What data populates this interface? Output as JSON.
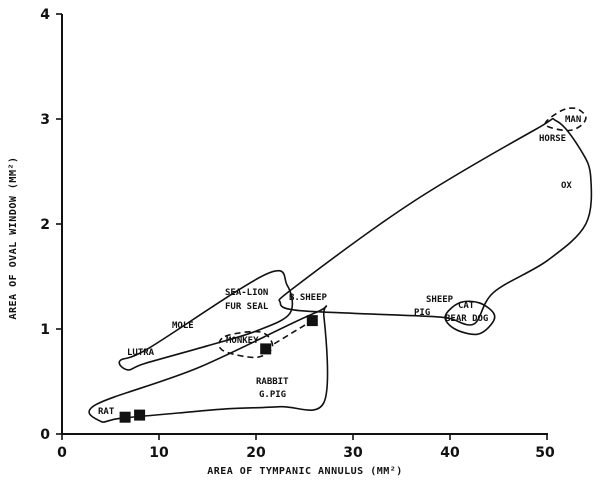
{
  "chart_data": {
    "type": "scatter",
    "title": "",
    "xlabel": "AREA OF TYMPANIC ANNULUS (MM²)",
    "ylabel": "AREA OF OVAL WINDOW (MM²)",
    "xlim": [
      0,
      50
    ],
    "ylim": [
      0,
      4
    ],
    "x_ticks": [
      "0",
      "10",
      "20",
      "30",
      "40",
      "50"
    ],
    "y_ticks": [
      "0",
      "1",
      "2",
      "3",
      "4"
    ],
    "grid": false,
    "legend": "none",
    "labels": [
      {
        "text": "MAN"
      },
      {
        "text": "HORSE"
      },
      {
        "text": "OX"
      },
      {
        "text": "SEA-LION"
      },
      {
        "text": "FUR SEAL"
      },
      {
        "text": "B.SHEEP"
      },
      {
        "text": "MOLE"
      },
      {
        "text": "SHEEP"
      },
      {
        "text": "PIG"
      },
      {
        "text": "CAT"
      },
      {
        "text": "BEAR DOG"
      },
      {
        "text": "MONKEY"
      },
      {
        "text": "LUTRA"
      },
      {
        "text": "RABBIT"
      },
      {
        "text": "G.PIG"
      },
      {
        "text": "RAT"
      }
    ],
    "series": [
      {
        "points": [
          {
            "x": 6.5,
            "y": 0.16
          },
          {
            "x": 8.0,
            "y": 0.18
          },
          {
            "x": 21.0,
            "y": 0.81
          },
          {
            "x": 25.8,
            "y": 1.08
          }
        ]
      }
    ],
    "regions": [
      {
        "style": "solid",
        "path": [
          [
            22.5,
            1.25
          ],
          [
            24,
            1.4
          ],
          [
            36,
            2.2
          ],
          [
            48.8,
            2.9
          ],
          [
            51,
            2.98
          ],
          [
            53.5,
            2.7
          ],
          [
            54.5,
            2.45
          ],
          [
            54,
            2.0
          ],
          [
            50,
            1.65
          ],
          [
            44.5,
            1.35
          ],
          [
            42.5,
            1.05
          ],
          [
            40,
            1.1
          ],
          [
            38,
            1.12
          ],
          [
            30,
            1.15
          ],
          [
            24,
            1.18
          ],
          [
            22.5,
            1.25
          ]
        ]
      },
      {
        "style": "dashed",
        "path": [
          [
            49.8,
            2.95
          ],
          [
            51.5,
            3.08
          ],
          [
            53,
            3.1
          ],
          [
            54,
            3.02
          ],
          [
            53.4,
            2.93
          ],
          [
            52,
            2.89
          ],
          [
            49.8,
            2.95
          ]
        ]
      },
      {
        "style": "solid",
        "path": [
          [
            39.5,
            1.12
          ],
          [
            41,
            1.25
          ],
          [
            43,
            1.25
          ],
          [
            44.5,
            1.15
          ],
          [
            44.3,
            1.05
          ],
          [
            42.8,
            0.95
          ],
          [
            40.5,
            1.0
          ],
          [
            39.5,
            1.12
          ]
        ]
      },
      {
        "style": "solid",
        "path": [
          [
            6,
            0.7
          ],
          [
            9,
            0.82
          ],
          [
            21,
            1.52
          ],
          [
            23.2,
            1.42
          ],
          [
            23.5,
            1.15
          ],
          [
            20,
            0.98
          ],
          [
            15,
            0.84
          ],
          [
            8.5,
            0.67
          ],
          [
            6.8,
            0.61
          ],
          [
            6,
            0.7
          ]
        ]
      },
      {
        "style": "solid",
        "path": [
          [
            3.5,
            0.28
          ],
          [
            14,
            0.63
          ],
          [
            26,
            1.15
          ],
          [
            27,
            1.12
          ],
          [
            27,
            0.3
          ],
          [
            22.5,
            0.26
          ],
          [
            17,
            0.24
          ],
          [
            12,
            0.2
          ],
          [
            6,
            0.15
          ],
          [
            4,
            0.12
          ],
          [
            3.5,
            0.28
          ]
        ]
      },
      {
        "style": "dashed",
        "path": [
          [
            16.8,
            0.93
          ],
          [
            20.5,
            0.97
          ],
          [
            21.7,
            0.83
          ],
          [
            20,
            0.73
          ],
          [
            16.5,
            0.8
          ],
          [
            16.8,
            0.93
          ]
        ]
      }
    ],
    "connectors": [
      {
        "style": "dashed",
        "from": [
          21.0,
          0.81
        ],
        "to": [
          25.8,
          1.08
        ]
      }
    ]
  }
}
